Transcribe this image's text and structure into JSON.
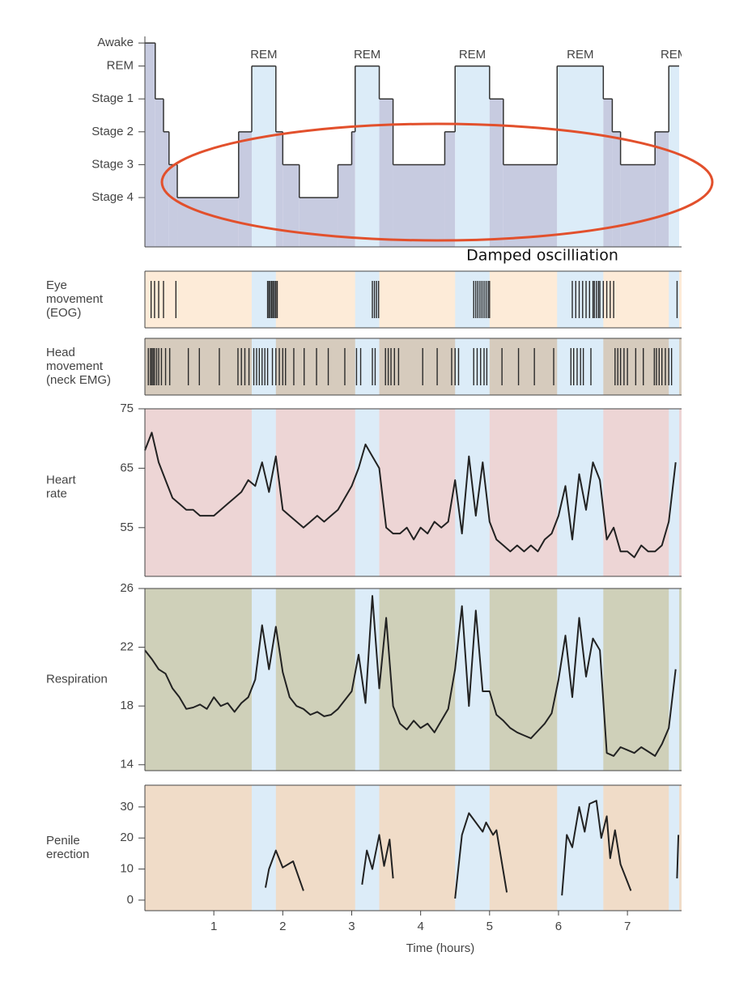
{
  "chart_data": [
    {
      "type": "step",
      "yticks": [
        {
          "value": -0.7,
          "label": "Awake"
        },
        {
          "value": 0,
          "label": "REM"
        },
        {
          "value": 1,
          "label": "Stage 1"
        },
        {
          "value": 2,
          "label": "Stage 2"
        },
        {
          "value": 3,
          "label": "Stage 3"
        },
        {
          "value": 4,
          "label": "Stage 4"
        }
      ],
      "ylim": [
        5.5,
        -0.9
      ],
      "xlim": [
        0,
        7.75
      ],
      "color": "#c7cbe0",
      "rem_color": "#dcecf8",
      "line_color": "#333333",
      "x": [
        0,
        0.15,
        0.27,
        0.35,
        0.47,
        1.36,
        1.55,
        1.9,
        2.0,
        2.24,
        2.8,
        3.0,
        3.05,
        3.4,
        3.6,
        4.35,
        4.5,
        5.0,
        5.2,
        5.98,
        6.65,
        6.78,
        6.9,
        7.4,
        7.6
      ],
      "values": [
        -0.7,
        1,
        2,
        3,
        4,
        2,
        0,
        2,
        3,
        4,
        3,
        2,
        0,
        1,
        3,
        2,
        0,
        1,
        3,
        0,
        1,
        2,
        3,
        2,
        0
      ],
      "rem_periods": [
        {
          "label": "REM",
          "start": 1.55,
          "end": 1.9
        },
        {
          "label": "REM",
          "start": 3.05,
          "end": 3.4
        },
        {
          "label": "REM",
          "start": 4.5,
          "end": 5.0
        },
        {
          "label": "REM",
          "start": 5.98,
          "end": 6.65
        },
        {
          "label": "REM",
          "start": 7.6,
          "end": 7.75
        }
      ],
      "annotation": "Damped oscilliation"
    },
    {
      "type": "events",
      "ylabel": [
        "Eye",
        "movement",
        "(EOG)"
      ],
      "xlim": [
        0,
        7.75
      ],
      "background_color": "#fdebd8",
      "events": [
        0.09,
        0.14,
        0.2,
        0.27,
        0.45,
        1.78,
        1.8,
        1.82,
        1.84,
        1.86,
        1.88,
        1.9,
        1.92,
        3.3,
        3.33,
        3.36,
        3.39,
        4.77,
        4.8,
        4.83,
        4.86,
        4.89,
        4.92,
        4.95,
        4.98,
        5.0,
        6.2,
        6.25,
        6.3,
        6.35,
        6.4,
        6.45,
        6.5,
        6.52,
        6.55,
        6.58,
        6.6,
        6.65,
        6.7,
        6.75,
        6.8,
        7.72
      ]
    },
    {
      "type": "events",
      "ylabel": [
        "Head",
        "movement",
        "(neck EMG)"
      ],
      "xlim": [
        0,
        7.75
      ],
      "background_color": "#d6cbbd",
      "events": [
        0.05,
        0.08,
        0.1,
        0.12,
        0.14,
        0.17,
        0.2,
        0.24,
        0.3,
        0.36,
        0.63,
        0.79,
        1.08,
        1.35,
        1.4,
        1.45,
        1.51,
        1.58,
        1.62,
        1.66,
        1.7,
        1.74,
        1.78,
        1.85,
        1.9,
        1.95,
        2.0,
        2.04,
        2.16,
        2.31,
        2.49,
        2.66,
        2.9,
        3.07,
        3.13,
        3.3,
        3.34,
        3.49,
        3.53,
        3.57,
        3.62,
        3.68,
        4.03,
        4.24,
        4.45,
        4.5,
        4.55,
        4.77,
        4.82,
        4.87,
        4.92,
        4.96,
        5.18,
        5.42,
        5.65,
        5.93,
        6.18,
        6.22,
        6.27,
        6.32,
        6.36,
        6.47,
        6.82,
        6.86,
        6.9,
        6.95,
        7.0,
        7.12,
        7.23,
        7.39,
        7.42,
        7.46,
        7.5,
        7.55,
        7.6,
        7.64
      ]
    },
    {
      "type": "line",
      "ylabel": [
        "Heart",
        "rate"
      ],
      "xlim": [
        0,
        7.75
      ],
      "ylim": [
        46.8,
        75
      ],
      "yticks": [
        55,
        65,
        75
      ],
      "background_color": "#edd5d5",
      "color": "#222222",
      "x": [
        0,
        0.1,
        0.2,
        0.3,
        0.4,
        0.5,
        0.6,
        0.7,
        0.8,
        0.9,
        1.0,
        1.1,
        1.2,
        1.3,
        1.4,
        1.5,
        1.6,
        1.7,
        1.8,
        1.9,
        2.0,
        2.1,
        2.2,
        2.3,
        2.4,
        2.5,
        2.6,
        2.7,
        2.8,
        2.9,
        3.0,
        3.1,
        3.2,
        3.3,
        3.4,
        3.5,
        3.6,
        3.7,
        3.8,
        3.9,
        4.0,
        4.1,
        4.2,
        4.3,
        4.4,
        4.5,
        4.6,
        4.7,
        4.8,
        4.9,
        5.0,
        5.1,
        5.2,
        5.3,
        5.4,
        5.5,
        5.6,
        5.7,
        5.8,
        5.9,
        6.0,
        6.1,
        6.2,
        6.3,
        6.4,
        6.5,
        6.6,
        6.7,
        6.8,
        6.9,
        7.0,
        7.1,
        7.2,
        7.3,
        7.4,
        7.5,
        7.6,
        7.7
      ],
      "values": [
        68,
        71,
        66,
        63,
        60,
        59,
        58,
        58,
        57,
        57,
        57,
        58,
        59,
        60,
        61,
        63,
        62,
        66,
        61,
        67,
        58,
        57,
        56,
        55,
        56,
        57,
        56,
        57,
        58,
        60,
        62,
        65,
        69,
        67,
        65,
        55,
        54,
        54,
        55,
        53,
        55,
        54,
        56,
        55,
        56,
        63,
        54,
        67,
        57,
        66,
        56,
        53,
        52,
        51,
        52,
        51,
        52,
        51,
        53,
        54,
        57,
        62,
        53,
        64,
        58,
        66,
        63,
        53,
        55,
        51,
        51,
        50,
        52,
        51,
        51,
        52,
        56,
        66
      ]
    },
    {
      "type": "line",
      "ylabel": [
        "Respiration"
      ],
      "xlim": [
        0,
        7.75
      ],
      "ylim": [
        13.6,
        26
      ],
      "yticks": [
        14,
        18,
        22,
        26
      ],
      "background_color": "#cfd0b9",
      "color": "#222222",
      "x": [
        0,
        0.1,
        0.2,
        0.3,
        0.4,
        0.5,
        0.6,
        0.7,
        0.8,
        0.9,
        1.0,
        1.1,
        1.2,
        1.3,
        1.4,
        1.5,
        1.6,
        1.7,
        1.8,
        1.9,
        2.0,
        2.1,
        2.2,
        2.3,
        2.4,
        2.5,
        2.6,
        2.7,
        2.8,
        2.9,
        3.0,
        3.1,
        3.2,
        3.3,
        3.4,
        3.5,
        3.6,
        3.7,
        3.8,
        3.9,
        4.0,
        4.1,
        4.2,
        4.3,
        4.4,
        4.5,
        4.6,
        4.7,
        4.8,
        4.9,
        5.0,
        5.1,
        5.2,
        5.3,
        5.4,
        5.5,
        5.6,
        5.7,
        5.8,
        5.9,
        6.0,
        6.1,
        6.2,
        6.3,
        6.4,
        6.5,
        6.6,
        6.7,
        6.8,
        6.9,
        7.0,
        7.1,
        7.2,
        7.3,
        7.4,
        7.5,
        7.6,
        7.7
      ],
      "values": [
        21.8,
        21.2,
        20.5,
        20.2,
        19.2,
        18.6,
        17.8,
        17.9,
        18.1,
        17.8,
        18.6,
        18.0,
        18.2,
        17.6,
        18.2,
        18.6,
        19.8,
        23.5,
        20.5,
        23.4,
        20.3,
        18.6,
        18.0,
        17.8,
        17.4,
        17.6,
        17.3,
        17.4,
        17.8,
        18.4,
        19.0,
        21.5,
        18.2,
        25.5,
        19.2,
        24.0,
        18.0,
        16.8,
        16.4,
        17.0,
        16.5,
        16.8,
        16.2,
        17.0,
        17.8,
        20.5,
        24.8,
        18.0,
        24.5,
        19.0,
        19.0,
        17.4,
        17.0,
        16.5,
        16.2,
        16.0,
        15.8,
        16.3,
        16.8,
        17.5,
        19.8,
        22.8,
        18.6,
        24.0,
        20.0,
        22.6,
        21.8,
        14.8,
        14.6,
        15.2,
        15.0,
        14.8,
        15.2,
        14.9,
        14.6,
        15.4,
        16.5,
        20.5
      ]
    },
    {
      "type": "line",
      "ylabel": [
        "Penile",
        "erection"
      ],
      "xlim": [
        0,
        7.75
      ],
      "ylim": [
        -3.4,
        37
      ],
      "yticks": [
        0,
        10,
        20,
        30
      ],
      "background_color": "#f0dcc8",
      "color": "#222222",
      "x": [
        1.75,
        1.8,
        1.9,
        2.0,
        2.15,
        2.3,
        2.31,
        3.15,
        3.22,
        3.3,
        3.4,
        3.47,
        3.55,
        3.6,
        3.61,
        4.5,
        4.6,
        4.7,
        4.8,
        4.9,
        4.95,
        5.05,
        5.1,
        5.25,
        5.26,
        6.05,
        6.12,
        6.2,
        6.3,
        6.38,
        6.45,
        6.55,
        6.62,
        6.7,
        6.75,
        6.82,
        6.9,
        7.05,
        7.06,
        7.72,
        7.74
      ],
      "values": [
        4,
        10,
        16,
        10.5,
        12.5,
        3,
        null,
        5,
        16,
        10,
        21,
        11,
        19.5,
        7,
        null,
        0.5,
        21,
        28,
        25,
        22,
        25,
        21,
        22.5,
        2.5,
        null,
        1.5,
        21,
        17,
        30,
        22,
        31,
        32,
        20,
        27,
        13.5,
        22.5,
        11.5,
        3,
        null,
        7,
        21
      ],
      "xticks": [
        1,
        2,
        3,
        4,
        5,
        6,
        7
      ],
      "xlabel": "Time (hours)"
    }
  ]
}
